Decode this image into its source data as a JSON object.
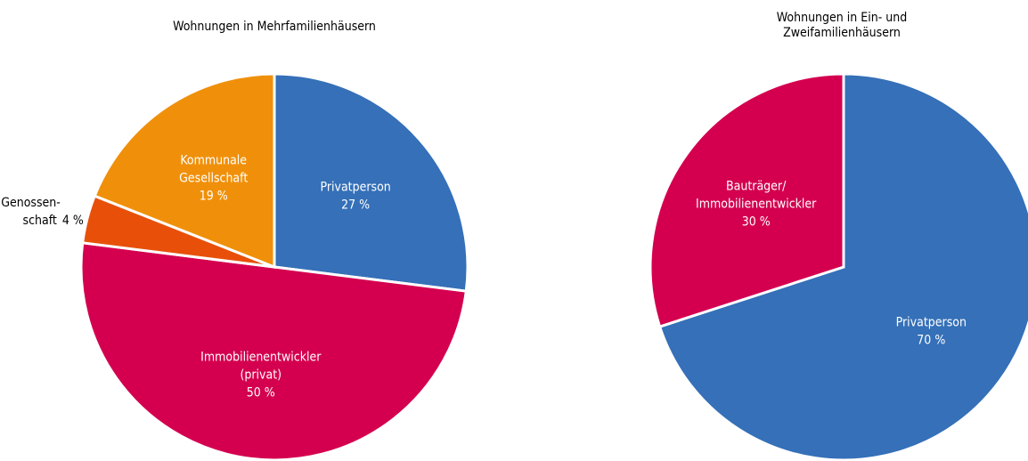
{
  "chart_data": [
    {
      "type": "pie",
      "title": "Wohnungen in Mehrfamilienhäusern",
      "categories": [
        "Privatperson",
        "Immobilienentwickler\n(privat)",
        "Genossen-\nschaft",
        "Kommunale\nGesellschaft"
      ],
      "values": [
        27,
        50,
        4,
        19
      ],
      "value_labels": [
        "27 %",
        "50 %",
        "4 %",
        "19 %"
      ],
      "colors": [
        "#3570b8",
        "#d4004f",
        "#e8500a",
        "#f0900a"
      ]
    },
    {
      "type": "pie",
      "title": "Wohnungen in Ein- und\nZweifamilienhäusern",
      "categories": [
        "Privatperson",
        "Bauträger/\nImmobilienentwickler"
      ],
      "values": [
        70,
        30
      ],
      "value_labels": [
        "70 %",
        "30 %"
      ],
      "colors": [
        "#3570b8",
        "#d4004f"
      ]
    }
  ]
}
